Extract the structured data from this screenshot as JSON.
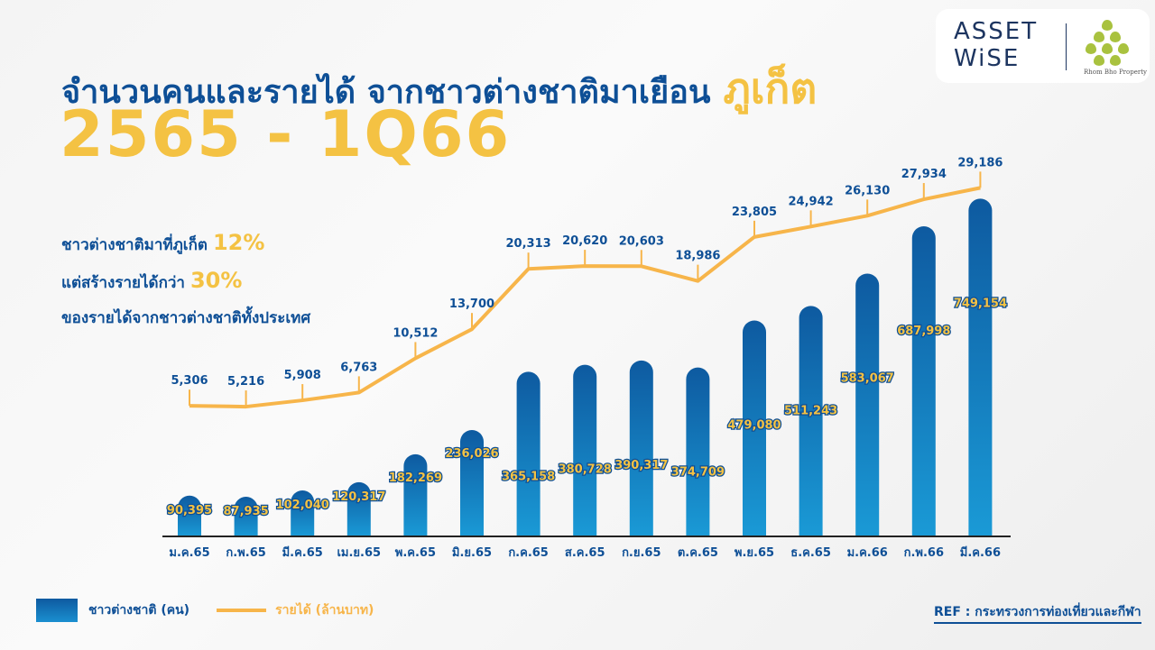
{
  "header": {
    "title": "จำนวนคนและรายได้ จากชาวต่างชาติมาเยือน",
    "title_highlight": "ภูเก็ต",
    "period": "2565 - 1Q66"
  },
  "facts": {
    "line1": "ชาวต่างชาติมาที่ภูเก็ต",
    "pct1": "12%",
    "line2": "แต่สร้างรายได้กว่า",
    "pct2": "30%",
    "line3": "ของรายได้จากชาวต่างชาติทั้งประเทศ"
  },
  "logo": {
    "brand": "ASSET WiSE",
    "partner": "Rhom Bho Property"
  },
  "legend": {
    "bars": "ชาวต่างชาติ (คน)",
    "line": "รายได้ (ล้านบาท)"
  },
  "ref": "REF : กระทรวงการท่องเที่ยวและกีฬา",
  "colors": {
    "bar_top": "#0e5aa0",
    "bar_bottom": "#1a9ad6",
    "line": "#f7b54a",
    "label_blue": "#0e4f96",
    "label_yellow": "#f4c243"
  },
  "chart_data": {
    "type": "bar+line",
    "categories": [
      "ม.ค.65",
      "ก.พ.65",
      "มี.ค.65",
      "เม.ย.65",
      "พ.ค.65",
      "มิ.ย.65",
      "ก.ค.65",
      "ส.ค.65",
      "ก.ย.65",
      "ต.ค.65",
      "พ.ย.65",
      "ธ.ค.65",
      "ม.ค.66",
      "ก.พ.66",
      "มี.ค.66"
    ],
    "series": [
      {
        "name": "ชาวต่างชาติ (คน)",
        "type": "bar",
        "values": [
          90395,
          87935,
          102040,
          120317,
          182269,
          236026,
          365158,
          380728,
          390317,
          374709,
          479080,
          511243,
          583067,
          687998,
          749154
        ],
        "labels": [
          "90,395",
          "87,935",
          "102,040",
          "120,317",
          "182,269",
          "236,026",
          "365,158",
          "380,728",
          "390,317",
          "374,709",
          "479,080",
          "511,243",
          "583,067",
          "687,998",
          "749,154"
        ]
      },
      {
        "name": "รายได้ (ล้านบาท)",
        "type": "line",
        "values": [
          5306,
          5216,
          5908,
          6763,
          10512,
          13700,
          20313,
          20620,
          20603,
          18986,
          23805,
          24942,
          26130,
          27934,
          29186
        ],
        "labels": [
          "5,306",
          "5,216",
          "5,908",
          "6,763",
          "10,512",
          "13,700",
          "20,313",
          "20,620",
          "20,603",
          "18,986",
          "23,805",
          "24,942",
          "26,130",
          "27,934",
          "29,186"
        ]
      }
    ],
    "bar_ylim": [
      0,
      760000
    ],
    "line_ylim": [
      -9000,
      31000
    ],
    "grid": false,
    "legend_position": "bottom-left"
  }
}
